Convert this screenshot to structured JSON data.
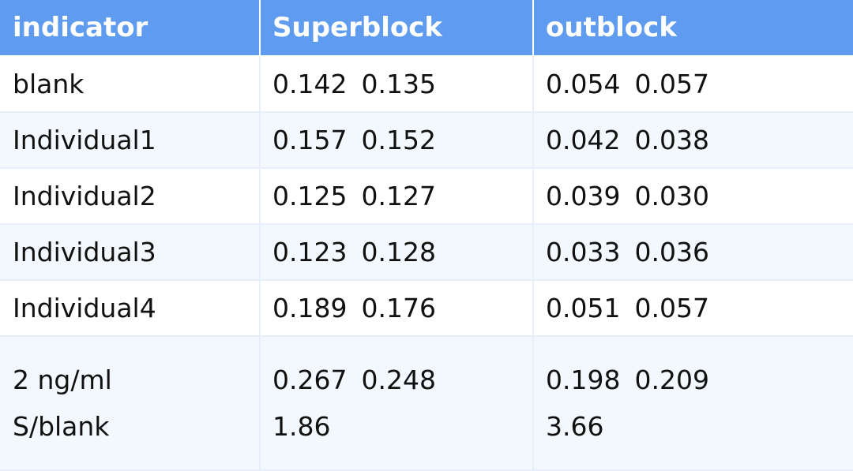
{
  "table": {
    "headers": [
      "indicator",
      "Superblock",
      "outblock"
    ],
    "rows": [
      {
        "indicator": "blank",
        "superblock": [
          "0.142",
          "0.135"
        ],
        "outblock": [
          "0.054",
          "0.057"
        ]
      },
      {
        "indicator": "Individual1",
        "superblock": [
          "0.157",
          "0.152"
        ],
        "outblock": [
          "0.042",
          "0.038"
        ]
      },
      {
        "indicator": "Individual2",
        "superblock": [
          "0.125",
          "0.127"
        ],
        "outblock": [
          "0.039",
          "0.030"
        ]
      },
      {
        "indicator": "Individual3",
        "superblock": [
          "0.123",
          "0.128"
        ],
        "outblock": [
          "0.033",
          "0.036"
        ]
      },
      {
        "indicator": "Individual4",
        "superblock": [
          "0.189",
          "0.176"
        ],
        "outblock": [
          "0.051",
          "0.057"
        ]
      }
    ],
    "last_row": {
      "indicator_lines": [
        "2 ng/ml",
        "S/blank"
      ],
      "superblock": [
        "0.267",
        "0.248"
      ],
      "superblock_ratio": "1.86",
      "outblock": [
        "0.198",
        "0.209"
      ],
      "outblock_ratio": "3.66"
    }
  },
  "colors": {
    "header_bg": "#5f9cf0",
    "header_text": "#ffffff",
    "alt_row_bg": "#f3f8fe",
    "border": "#e6effb"
  }
}
